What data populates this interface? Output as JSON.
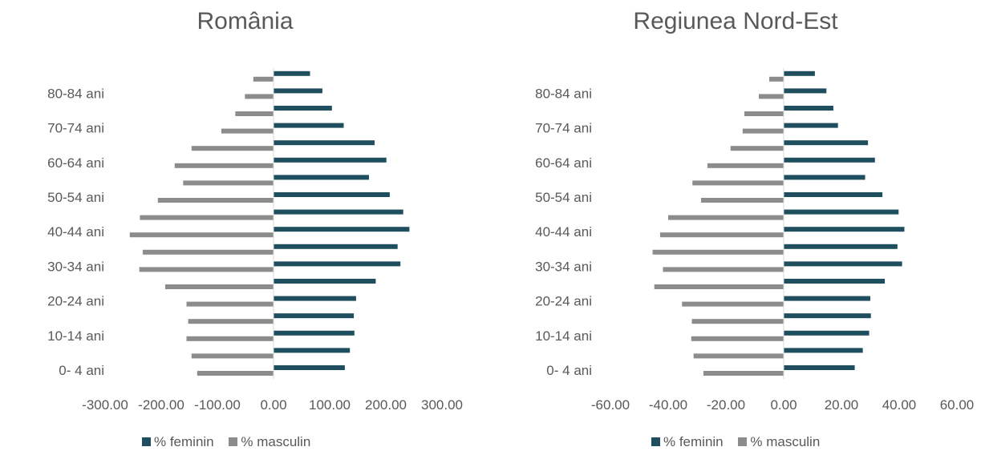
{
  "colors": {
    "feminin": "#1F4E5F",
    "masculin": "#8C8C8C",
    "axis": "#D9D9D9",
    "text": "#595959"
  },
  "chart_data": [
    {
      "type": "bar",
      "orientation": "horizontal",
      "title": "România",
      "categories": [
        "0- 4 ani",
        "5-9 ani",
        "10-14 ani",
        "15-19 ani",
        "20-24 ani",
        "25-29 ani",
        "30-34 ani",
        "35-39 ani",
        "40-44 ani",
        "45-49 ani",
        "50-54 ani",
        "55-59 ani",
        "60-64 ani",
        "65-69 ani",
        "70-74 ani",
        "75-79 ani",
        "80-84 ani",
        "85+ ani"
      ],
      "tick_labels": [
        "0- 4 ani",
        "10-14 ani",
        "20-24 ani",
        "30-34 ani",
        "40-44 ani",
        "50-54 ani",
        "60-64 ani",
        "70-74 ani",
        "80-84 ani"
      ],
      "x_ticks": [
        "-300.00",
        "-200.00",
        "-100.00",
        "0.00",
        "100.00",
        "200.00",
        "300.00"
      ],
      "xlim": [
        -300,
        300
      ],
      "series": [
        {
          "name": "% feminin",
          "values": [
            127,
            136,
            144,
            143,
            147,
            182,
            226,
            221,
            242,
            231,
            207,
            170,
            201,
            180,
            125,
            104,
            87,
            65
          ]
        },
        {
          "name": "% masculin",
          "values": [
            -136,
            -146,
            -155,
            -152,
            -155,
            -193,
            -239,
            -233,
            -256,
            -238,
            -206,
            -161,
            -176,
            -146,
            -93,
            -68,
            -51,
            -36
          ]
        }
      ]
    },
    {
      "type": "bar",
      "orientation": "horizontal",
      "title": "Regiunea Nord-Est",
      "categories": [
        "0- 4 ani",
        "5-9 ani",
        "10-14 ani",
        "15-19 ani",
        "20-24 ani",
        "25-29 ani",
        "30-34 ani",
        "35-39 ani",
        "40-44 ani",
        "45-49 ani",
        "50-54 ani",
        "55-59 ani",
        "60-64 ani",
        "65-69 ani",
        "70-74 ani",
        "75-79 ani",
        "80-84 ani",
        "85+ ani"
      ],
      "tick_labels": [
        "0- 4 ani",
        "10-14 ani",
        "20-24 ani",
        "30-34 ani",
        "40-44 ani",
        "50-54 ani",
        "60-64 ani",
        "70-74 ani",
        "80-84 ani"
      ],
      "x_ticks": [
        "-60.00",
        "-40.00",
        "-20.00",
        "0.00",
        "20.00",
        "40.00",
        "60.00"
      ],
      "xlim": [
        -60,
        60
      ],
      "series": [
        {
          "name": "% feminin",
          "values": [
            24.6,
            27.4,
            29.6,
            30.2,
            30.0,
            35.0,
            41.0,
            39.4,
            41.8,
            39.8,
            34.2,
            28.2,
            31.6,
            29.2,
            18.8,
            17.2,
            14.8,
            10.8
          ]
        },
        {
          "name": "% masculin",
          "values": [
            -27.8,
            -31.2,
            -32.0,
            -31.8,
            -35.2,
            -44.8,
            -41.8,
            -45.4,
            -42.8,
            -40.0,
            -28.6,
            -31.6,
            -26.4,
            -18.4,
            -14.2,
            -13.6,
            -8.6,
            -5.0
          ]
        }
      ]
    }
  ]
}
